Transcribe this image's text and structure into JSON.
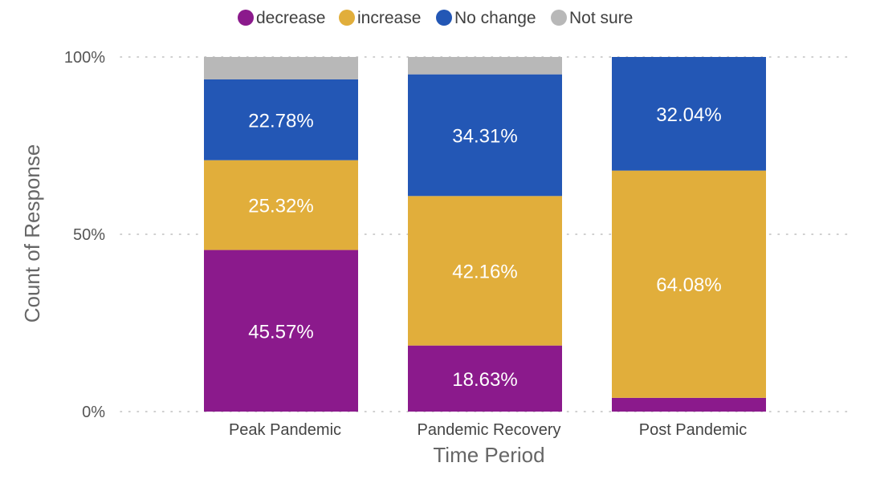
{
  "chart_data": {
    "type": "bar",
    "stacked": true,
    "normalized": true,
    "categories": [
      "Peak Pandemic",
      "Pandemic Recovery",
      "Post Pandemic"
    ],
    "series": [
      {
        "name": "decrease",
        "color": "#8B1A8C",
        "values": [
          45.57,
          18.63,
          3.88
        ]
      },
      {
        "name": "increase",
        "color": "#E1AE3B",
        "values": [
          25.32,
          42.16,
          64.08
        ]
      },
      {
        "name": "No change",
        "color": "#2357B5",
        "values": [
          22.78,
          34.31,
          32.04
        ]
      },
      {
        "name": "Not sure",
        "color": "#B8B8B8",
        "values": [
          6.33,
          4.9,
          0
        ]
      }
    ],
    "data_labels": [
      [
        "45.57%",
        "18.63%",
        ""
      ],
      [
        "25.32%",
        "42.16%",
        "64.08%"
      ],
      [
        "22.78%",
        "34.31%",
        "32.04%"
      ],
      [
        "",
        "",
        ""
      ]
    ],
    "xlabel": "Time Period",
    "ylabel": "Count of Response",
    "yticks": [
      "0%",
      "50%",
      "100%"
    ],
    "ylim": [
      0,
      100
    ],
    "grid": "horizontal dotted",
    "legend_position": "top"
  }
}
